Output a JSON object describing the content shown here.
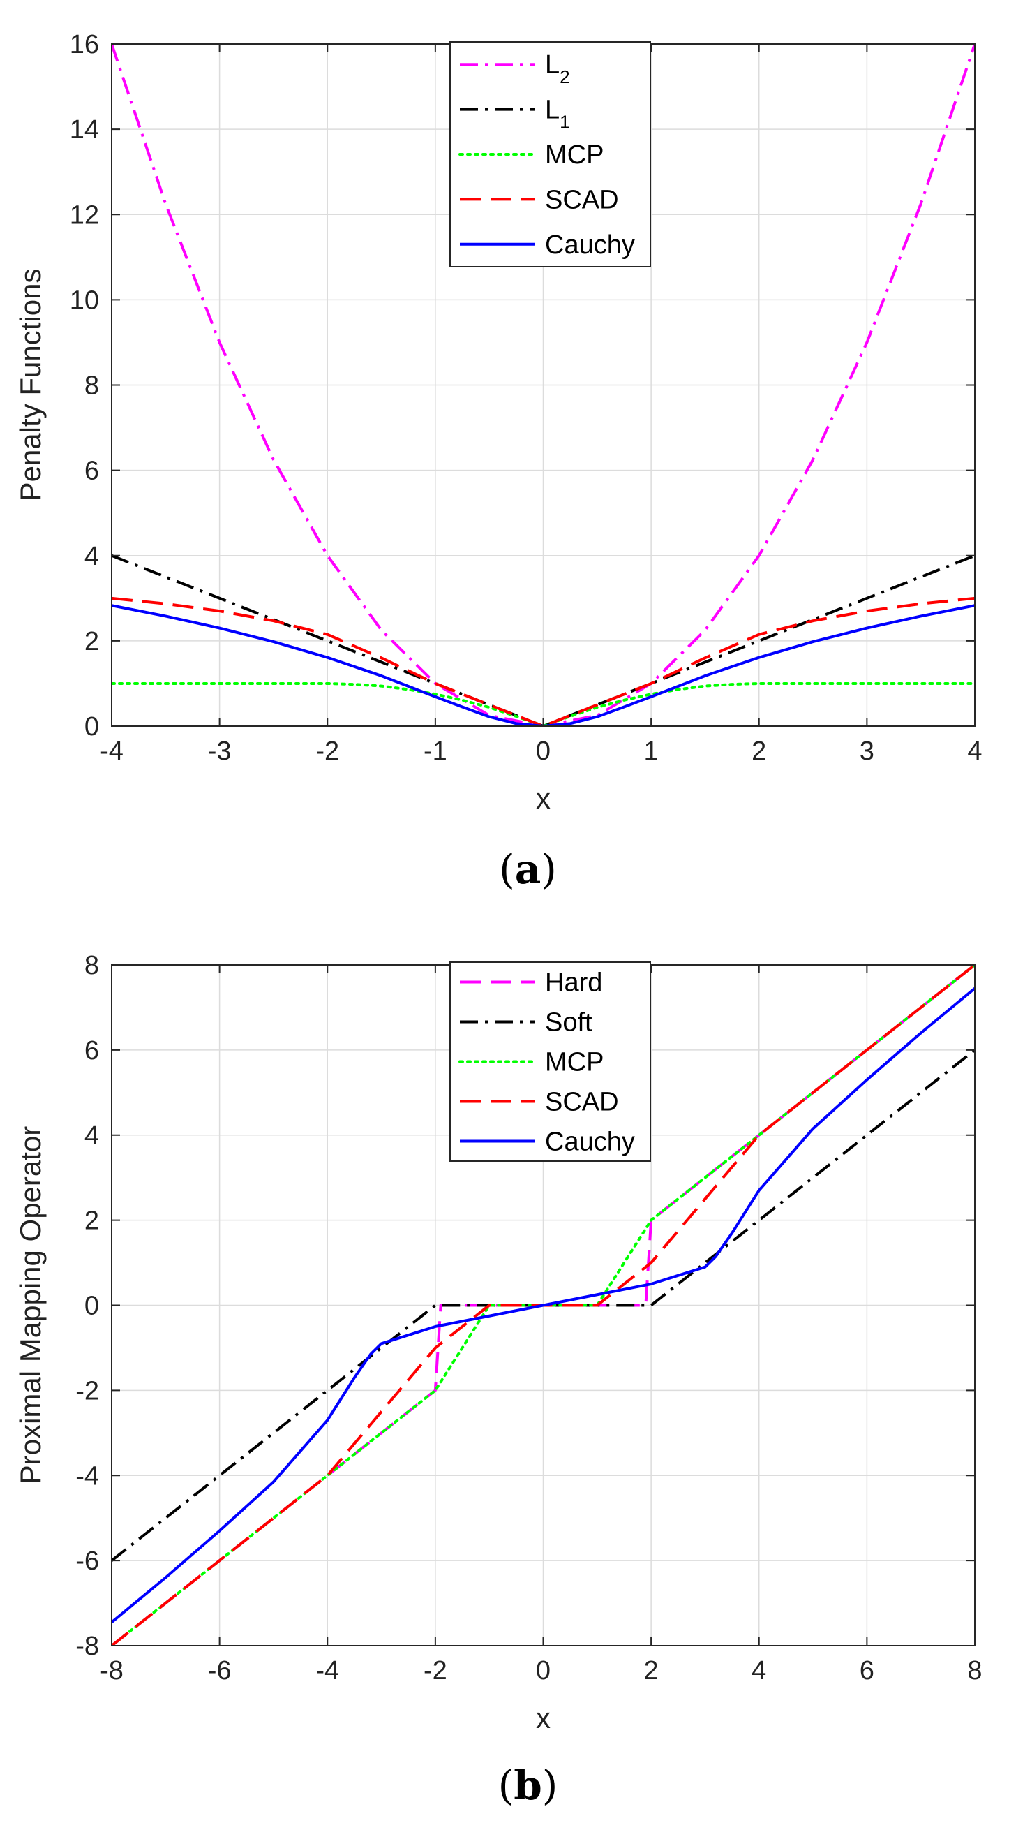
{
  "colors": {
    "magenta": "#ff00ff",
    "black": "#000000",
    "green": "#00ff00",
    "red": "#ff0000",
    "blue": "#0000ff",
    "grid": "#dcdcdc"
  },
  "chart_data": [
    {
      "type": "line",
      "caption": {
        "open": "(",
        "letter": "a",
        "close": ")"
      },
      "xlabel": "x",
      "ylabel": "Penalty Functions",
      "xlim": [
        -4,
        4
      ],
      "ylim": [
        0,
        16
      ],
      "xticks": [
        -4,
        -3,
        -2,
        -1,
        0,
        1,
        2,
        3,
        4
      ],
      "yticks": [
        0,
        2,
        4,
        6,
        8,
        10,
        12,
        14,
        16
      ],
      "grid": true,
      "legend_position": "top-center",
      "series": [
        {
          "name": "L",
          "name_sub": "2",
          "color": "#ff00ff",
          "style": "dashdot",
          "x": [
            -4,
            -3.5,
            -3,
            -2.5,
            -2,
            -1.5,
            -1,
            -0.5,
            0,
            0.5,
            1,
            1.5,
            2,
            2.5,
            3,
            3.5,
            4
          ],
          "y": [
            16,
            12.25,
            9,
            6.25,
            4,
            2.25,
            1,
            0.25,
            0,
            0.25,
            1,
            2.25,
            4,
            6.25,
            9,
            12.25,
            16
          ]
        },
        {
          "name": "L",
          "name_sub": "1",
          "color": "#000000",
          "style": "dashdot",
          "x": [
            -4,
            0,
            4
          ],
          "y": [
            4,
            0,
            4
          ]
        },
        {
          "name": "MCP",
          "color": "#00ff00",
          "style": "dotted",
          "x": [
            -4,
            -2,
            -1.75,
            -1.5,
            -1.25,
            -1,
            -0.75,
            -0.5,
            -0.25,
            0,
            0.25,
            0.5,
            0.75,
            1,
            1.25,
            1.5,
            1.75,
            2,
            4
          ],
          "y": [
            1,
            1,
            0.98,
            0.94,
            0.86,
            0.75,
            0.61,
            0.44,
            0.23,
            0,
            0.23,
            0.44,
            0.61,
            0.75,
            0.86,
            0.94,
            0.98,
            1,
            1
          ]
        },
        {
          "name": "SCAD",
          "color": "#ff0000",
          "style": "dashed",
          "x": [
            -4,
            -3.5,
            -3,
            -2.5,
            -2,
            -1.5,
            -1,
            -0.5,
            0,
            0.5,
            1,
            1.5,
            2,
            2.5,
            3,
            3.5,
            4
          ],
          "y": [
            3,
            2.87,
            2.7,
            2.47,
            2.15,
            1.6,
            1.0,
            0.5,
            0,
            0.5,
            1.0,
            1.6,
            2.15,
            2.47,
            2.7,
            2.87,
            3
          ]
        },
        {
          "name": "Cauchy",
          "color": "#0000ff",
          "style": "solid",
          "x": [
            -4,
            -3.5,
            -3,
            -2.5,
            -2,
            -1.5,
            -1,
            -0.75,
            -0.5,
            -0.25,
            0,
            0.25,
            0.5,
            0.75,
            1,
            1.5,
            2,
            2.5,
            3,
            3.5,
            4
          ],
          "y": [
            2.83,
            2.58,
            2.3,
            1.98,
            1.61,
            1.18,
            0.69,
            0.45,
            0.22,
            0.06,
            0,
            0.06,
            0.22,
            0.45,
            0.69,
            1.18,
            1.61,
            1.98,
            2.3,
            2.58,
            2.83
          ]
        }
      ]
    },
    {
      "type": "line",
      "caption": {
        "open": "(",
        "letter": "b",
        "close": ")"
      },
      "xlabel": "x",
      "ylabel": "Proximal Mapping Operator",
      "xlim": [
        -8,
        8
      ],
      "ylim": [
        -8,
        8
      ],
      "xticks": [
        -8,
        -6,
        -4,
        -2,
        0,
        2,
        4,
        6,
        8
      ],
      "yticks": [
        -8,
        -6,
        -4,
        -2,
        0,
        2,
        4,
        6,
        8
      ],
      "grid": true,
      "legend_position": "top-center",
      "series": [
        {
          "name": "Hard",
          "color": "#ff00ff",
          "style": "dashed",
          "x": [
            -8,
            -2,
            -1.9,
            0,
            1.9,
            2,
            8
          ],
          "y": [
            -8,
            -2,
            0,
            0,
            0,
            2,
            8
          ]
        },
        {
          "name": "Soft",
          "color": "#000000",
          "style": "dashdot",
          "x": [
            -8,
            -2,
            2,
            8
          ],
          "y": [
            -6,
            0,
            0,
            6
          ]
        },
        {
          "name": "MCP",
          "color": "#00ff00",
          "style": "dotted",
          "x": [
            -8,
            -2,
            -1,
            1,
            2,
            8
          ],
          "y": [
            -8,
            -2,
            0,
            0,
            2,
            8
          ]
        },
        {
          "name": "SCAD",
          "color": "#ff0000",
          "style": "dashed",
          "x": [
            -8,
            -4,
            -2,
            -1,
            1,
            2,
            4,
            8
          ],
          "y": [
            -8,
            -4,
            -1,
            0,
            0,
            1,
            4,
            8
          ]
        },
        {
          "name": "Cauchy",
          "color": "#0000ff",
          "style": "solid",
          "x": [
            -8,
            -7,
            -6,
            -5,
            -4,
            -3.5,
            -3.2,
            -3,
            -2.5,
            -2,
            -1,
            0,
            1,
            2,
            2.5,
            3,
            3.2,
            3.5,
            4,
            5,
            6,
            7,
            8
          ],
          "y": [
            -7.45,
            -6.4,
            -5.3,
            -4.15,
            -2.7,
            -1.7,
            -1.15,
            -0.9,
            -0.7,
            -0.5,
            -0.25,
            0,
            0.25,
            0.5,
            0.7,
            0.9,
            1.15,
            1.7,
            2.7,
            4.15,
            5.3,
            6.4,
            7.45
          ]
        }
      ]
    }
  ]
}
